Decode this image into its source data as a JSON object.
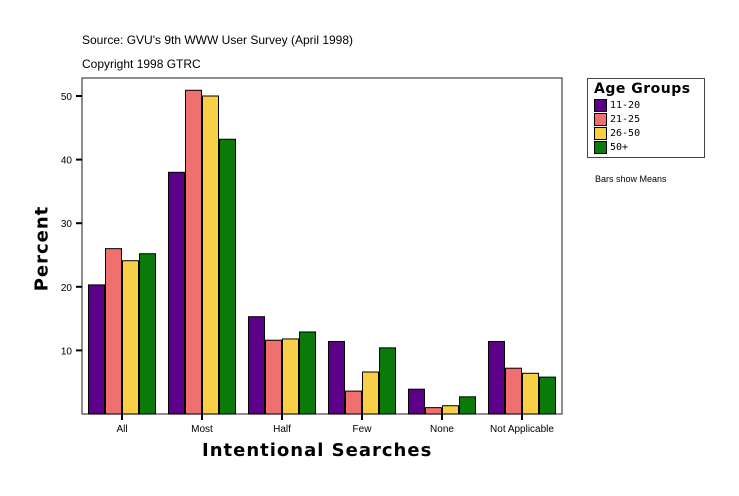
{
  "header": {
    "source": "Source: GVU's 9th WWW User Survey (April 1998)",
    "copyright": "Copyright 1998 GTRC"
  },
  "legend": {
    "title": "Age Groups",
    "items": [
      {
        "label": "11-20",
        "color": "#5c0089"
      },
      {
        "label": "21-25",
        "color": "#f07070"
      },
      {
        "label": "26-50",
        "color": "#f8d048"
      },
      {
        "label": "50+",
        "color": "#0a7a0a"
      }
    ]
  },
  "note": "Bars show Means",
  "chart_data": {
    "type": "bar",
    "title": "",
    "xlabel": "Intentional Searches",
    "ylabel": "Percent",
    "ylim": [
      0,
      52
    ],
    "yticks": [
      10,
      20,
      30,
      40,
      50
    ],
    "categories": [
      "All",
      "Most",
      "Half",
      "Few",
      "None",
      "Not Applicable"
    ],
    "series": [
      {
        "name": "11-20",
        "color": "#5c0089",
        "values": [
          20.3,
          38.0,
          15.3,
          11.4,
          3.9,
          11.4
        ]
      },
      {
        "name": "21-25",
        "color": "#f07070",
        "values": [
          26.0,
          50.9,
          11.6,
          3.6,
          1.0,
          7.2
        ]
      },
      {
        "name": "26-50",
        "color": "#f8d048",
        "values": [
          24.1,
          50.0,
          11.8,
          6.6,
          1.3,
          6.4
        ]
      },
      {
        "name": "50+",
        "color": "#0a7a0a",
        "values": [
          25.2,
          43.2,
          12.9,
          10.4,
          2.7,
          5.8
        ]
      }
    ],
    "legend_position": "right",
    "grid": false
  }
}
